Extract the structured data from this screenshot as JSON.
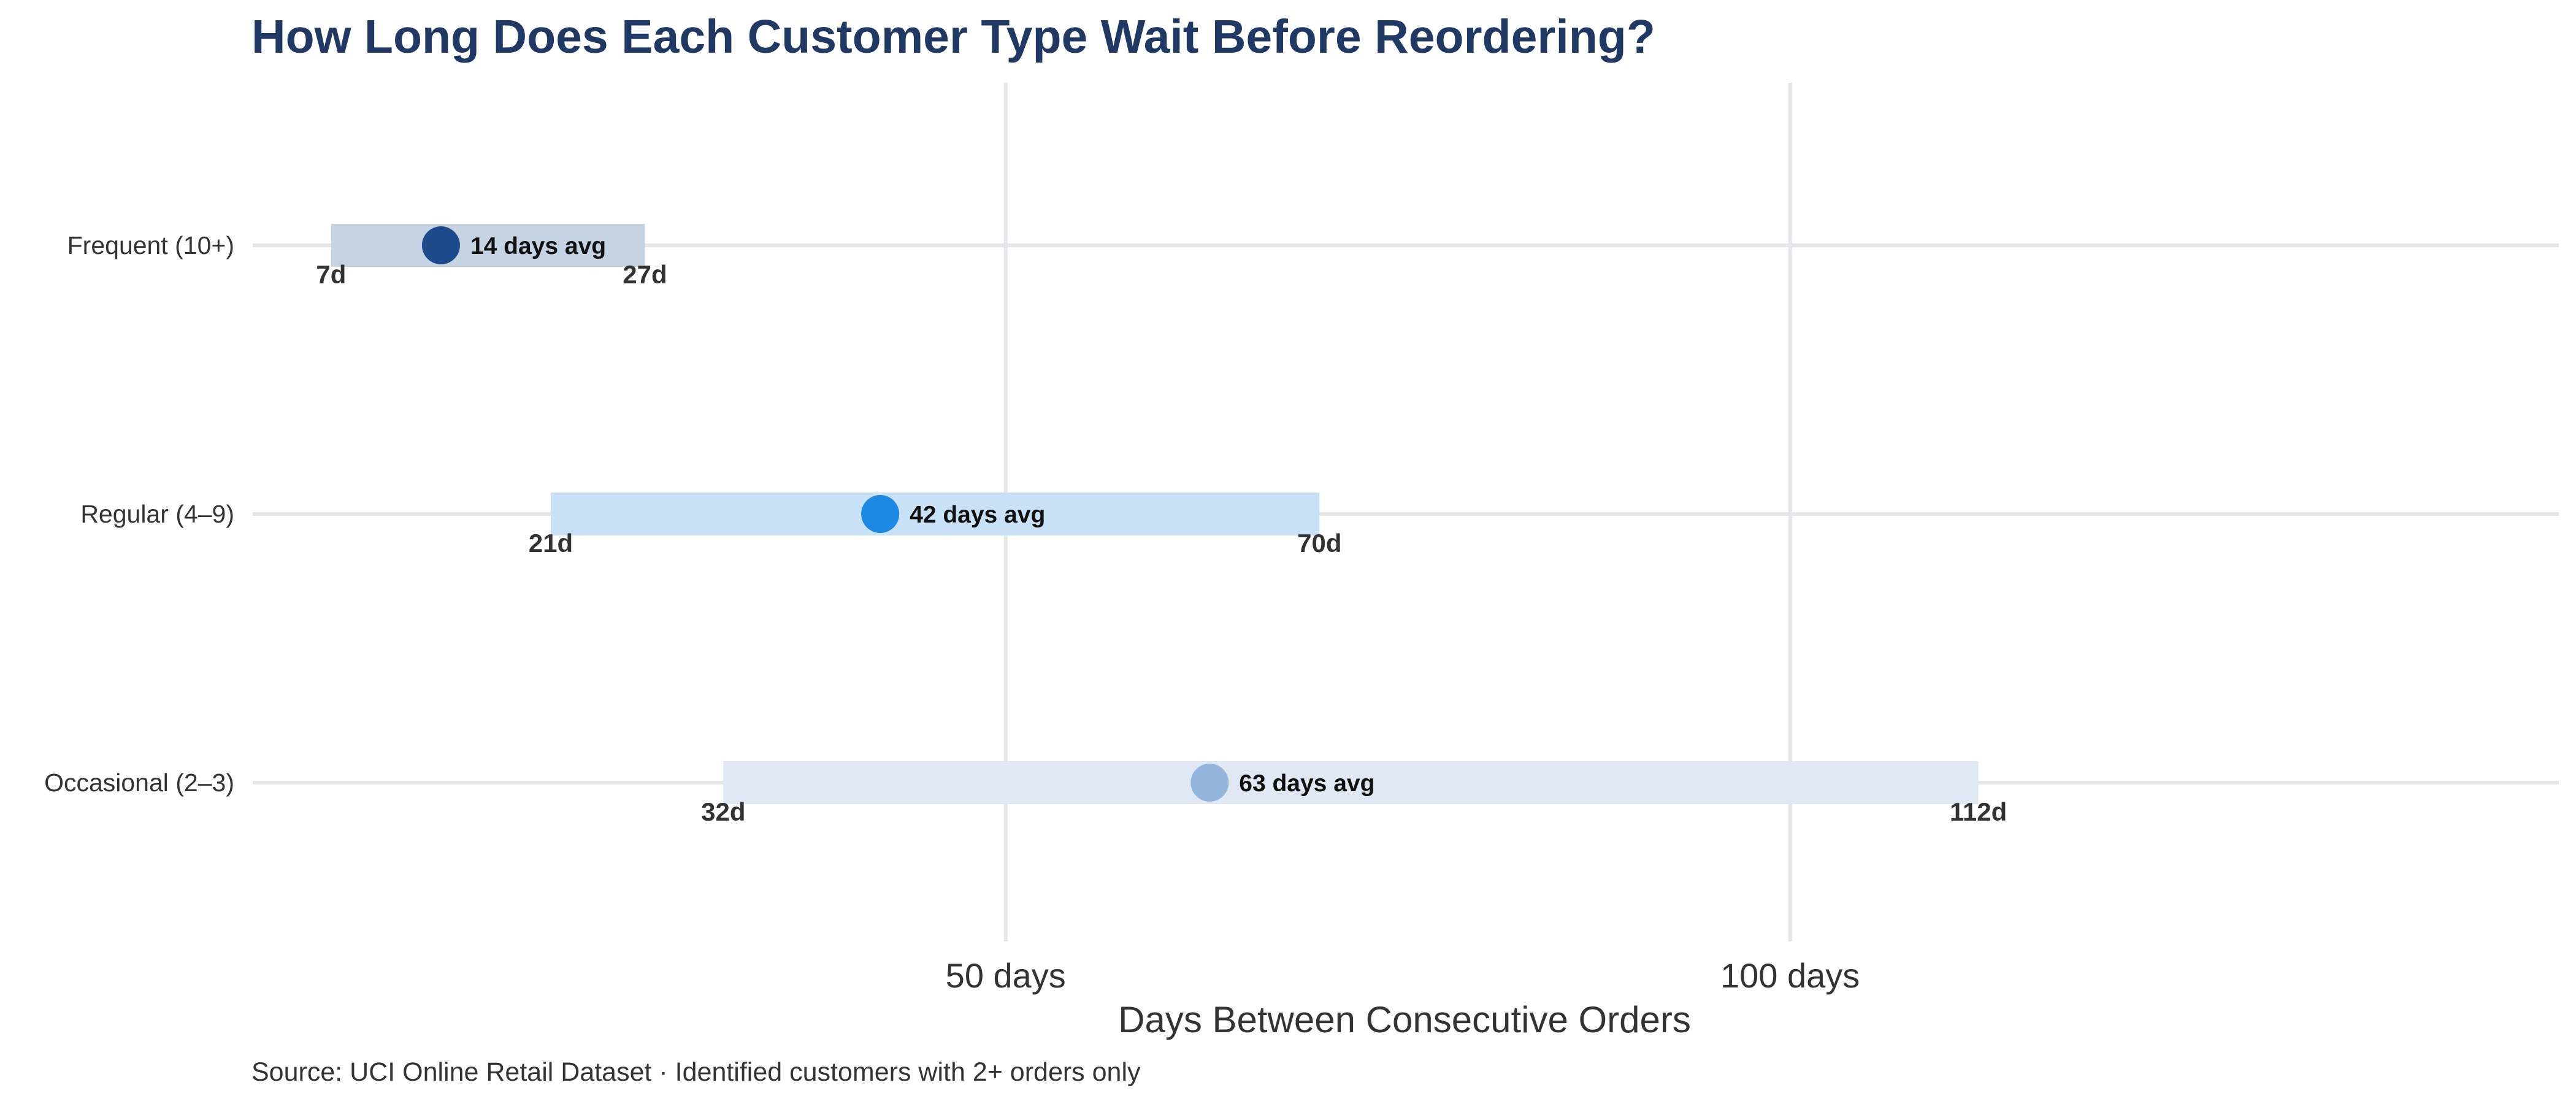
{
  "chart_data": {
    "type": "range-dot",
    "title": "How Long Does Each Customer Type Wait Before Reordering?",
    "xlabel": "Days Between Consecutive Orders",
    "caption": "Source: UCI Online Retail Dataset · Identified customers with 2+ orders only",
    "xlim": [
      2,
      149
    ],
    "x_ticks": [
      {
        "value": 50,
        "label": "50 days"
      },
      {
        "value": 100,
        "label": "100 days"
      }
    ],
    "grid": true,
    "categories": [
      "Frequent (10+)",
      "Regular (4–9)",
      "Occasional (2–3)"
    ],
    "series": [
      {
        "category": "Frequent (10+)",
        "low": 7,
        "high": 27,
        "avg": 14,
        "low_label": "7d",
        "high_label": "27d",
        "avg_label": "14 days avg",
        "bar_color": "#c5d3e2",
        "dot_color": "#1c4a8a"
      },
      {
        "category": "Regular (4–9)",
        "low": 21,
        "high": 70,
        "avg": 42,
        "low_label": "21d",
        "high_label": "70d",
        "avg_label": "42 days avg",
        "bar_color": "#c8e1f7",
        "dot_color": "#1e88e5"
      },
      {
        "category": "Occasional (2–3)",
        "low": 32,
        "high": 112,
        "avg": 63,
        "low_label": "32d",
        "high_label": "112d",
        "avg_label": "63 days avg",
        "bar_color": "#e0e9f3",
        "dot_color": "#95b6dc"
      }
    ]
  }
}
